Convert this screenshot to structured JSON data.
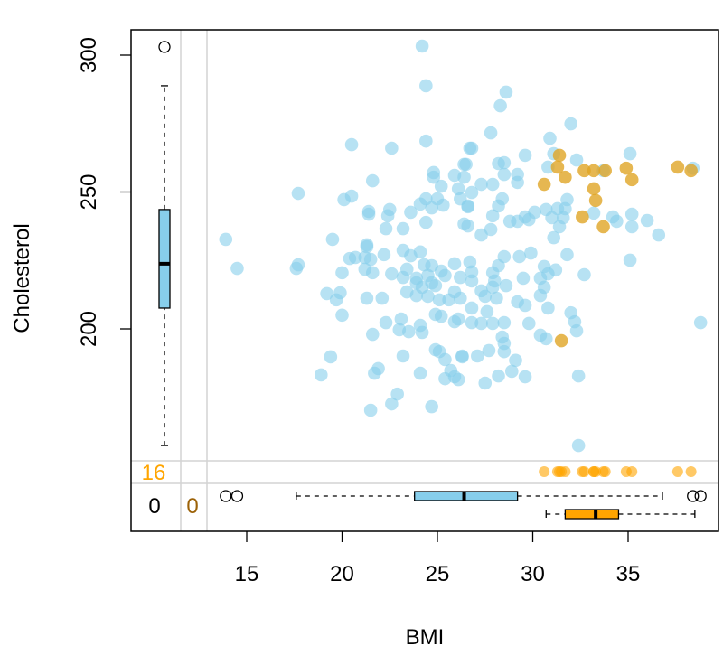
{
  "chart_data": {
    "type": "scatter",
    "title": "",
    "xlabel": "BMI",
    "ylabel": "Cholesterol",
    "xlim": [
      8.9,
      39.7
    ],
    "ylim": [
      126,
      309
    ],
    "x_ticks": [
      15,
      20,
      25,
      30,
      35
    ],
    "y_ticks": [
      200,
      250,
      300
    ],
    "grid": false,
    "colors": {
      "observed": "#87CEEB",
      "imputed": "#E0A526",
      "missing_marks": "#FFA500",
      "missing_count_x": "#9C6208",
      "axis": "#000000"
    },
    "missing_counts": {
      "cholesterol_missing": "16",
      "both_missing": "0",
      "bmi_missing": "0"
    },
    "series": [
      {
        "name": "observed",
        "points": [
          [
            24.2,
            303.3
          ],
          [
            24.4,
            288.8
          ],
          [
            20.5,
            267.3
          ],
          [
            22.6,
            266.0
          ],
          [
            24.4,
            268.6
          ],
          [
            21.6,
            254.1
          ],
          [
            17.7,
            249.5
          ],
          [
            20.1,
            247.2
          ],
          [
            20.5,
            248.5
          ],
          [
            21.4,
            242.9
          ],
          [
            21.4,
            241.9
          ],
          [
            22.5,
            243.6
          ],
          [
            22.4,
            241.3
          ],
          [
            23.6,
            242.6
          ],
          [
            22.3,
            236.6
          ],
          [
            23.2,
            236.6
          ],
          [
            24.4,
            238.9
          ],
          [
            13.9,
            232.7
          ],
          [
            19.5,
            232.7
          ],
          [
            21.3,
            230.7
          ],
          [
            24.8,
            257.1
          ],
          [
            24.8,
            255.4
          ],
          [
            25.2,
            252.1
          ],
          [
            25.9,
            256.1
          ],
          [
            26.4,
            255.4
          ],
          [
            26.4,
            260.1
          ],
          [
            26.7,
            266.0
          ],
          [
            26.1,
            251.2
          ],
          [
            26.2,
            247.5
          ],
          [
            24.4,
            247.5
          ],
          [
            25.0,
            247.5
          ],
          [
            24.1,
            245.6
          ],
          [
            24.7,
            244.2
          ],
          [
            25.3,
            245.2
          ],
          [
            26.6,
            244.6
          ],
          [
            26.4,
            238.3
          ],
          [
            28.6,
            286.5
          ],
          [
            28.3,
            281.5
          ],
          [
            27.8,
            271.6
          ],
          [
            32.0,
            274.9
          ],
          [
            30.9,
            269.6
          ],
          [
            26.8,
            266.0
          ],
          [
            29.6,
            263.4
          ],
          [
            35.1,
            264.0
          ],
          [
            32.3,
            261.7
          ],
          [
            31.1,
            264.0
          ],
          [
            30.8,
            259.1
          ],
          [
            33.7,
            257.8
          ],
          [
            38.4,
            258.7
          ],
          [
            26.5,
            260.1
          ],
          [
            28.2,
            260.4
          ],
          [
            28.5,
            260.7
          ],
          [
            28.5,
            256.4
          ],
          [
            29.2,
            256.4
          ],
          [
            29.2,
            253.5
          ],
          [
            27.9,
            252.8
          ],
          [
            27.3,
            252.8
          ],
          [
            26.8,
            249.8
          ],
          [
            28.4,
            247.5
          ],
          [
            28.2,
            244.9
          ],
          [
            26.6,
            244.9
          ],
          [
            27.9,
            241.3
          ],
          [
            31.8,
            247.2
          ],
          [
            30.7,
            243.6
          ],
          [
            31.3,
            243.9
          ],
          [
            31.7,
            243.9
          ],
          [
            31.0,
            240.6
          ],
          [
            31.6,
            240.6
          ],
          [
            31.4,
            237.3
          ],
          [
            30.1,
            242.6
          ],
          [
            29.6,
            240.9
          ],
          [
            29.8,
            239.9
          ],
          [
            29.2,
            239.3
          ],
          [
            28.8,
            239.3
          ],
          [
            33.2,
            242.3
          ],
          [
            34.2,
            240.9
          ],
          [
            34.4,
            239.3
          ],
          [
            35.2,
            241.9
          ],
          [
            35.2,
            237.3
          ],
          [
            36.0,
            239.6
          ],
          [
            36.6,
            234.3
          ],
          [
            31.1,
            233.3
          ],
          [
            27.8,
            236.3
          ],
          [
            27.3,
            234.3
          ],
          [
            26.6,
            237.6
          ],
          [
            14.5,
            222.1
          ],
          [
            17.6,
            222.1
          ],
          [
            17.7,
            223.4
          ],
          [
            20.0,
            220.5
          ],
          [
            20.4,
            225.7
          ],
          [
            20.7,
            226.1
          ],
          [
            21.3,
            230.0
          ],
          [
            21.2,
            226.1
          ],
          [
            21.5,
            225.4
          ],
          [
            21.2,
            221.8
          ],
          [
            21.6,
            220.5
          ],
          [
            22.2,
            227.1
          ],
          [
            22.6,
            220.1
          ],
          [
            23.2,
            228.7
          ],
          [
            23.6,
            226.7
          ],
          [
            24.1,
            228.1
          ],
          [
            24.3,
            223.4
          ],
          [
            24.7,
            223.1
          ],
          [
            23.4,
            221.8
          ],
          [
            23.2,
            218.8
          ],
          [
            23.9,
            218.5
          ],
          [
            24.5,
            219.5
          ],
          [
            25.2,
            221.1
          ],
          [
            25.4,
            219.5
          ],
          [
            25.9,
            223.8
          ],
          [
            26.2,
            218.8
          ],
          [
            24.9,
            215.8
          ],
          [
            24.7,
            216.8
          ],
          [
            23.9,
            216.8
          ],
          [
            24.2,
            215.2
          ],
          [
            23.4,
            213.5
          ],
          [
            23.9,
            212.2
          ],
          [
            24.5,
            211.9
          ],
          [
            25.1,
            210.6
          ],
          [
            25.6,
            210.6
          ],
          [
            25.9,
            213.5
          ],
          [
            26.2,
            211.2
          ],
          [
            19.2,
            212.9
          ],
          [
            19.9,
            213.2
          ],
          [
            19.7,
            210.6
          ],
          [
            21.3,
            211.2
          ],
          [
            22.1,
            211.2
          ],
          [
            20.0,
            205.0
          ],
          [
            22.3,
            202.3
          ],
          [
            23.1,
            203.6
          ],
          [
            23.0,
            199.7
          ],
          [
            23.5,
            199.0
          ],
          [
            24.1,
            201.3
          ],
          [
            24.2,
            198.7
          ],
          [
            21.6,
            198.0
          ],
          [
            24.9,
            205.3
          ],
          [
            25.2,
            204.6
          ],
          [
            25.9,
            202.6
          ],
          [
            26.1,
            203.6
          ],
          [
            19.4,
            189.8
          ],
          [
            18.9,
            183.2
          ],
          [
            21.9,
            185.5
          ],
          [
            21.7,
            183.8
          ],
          [
            23.2,
            190.1
          ],
          [
            24.1,
            183.8
          ],
          [
            24.9,
            192.4
          ],
          [
            25.1,
            191.7
          ],
          [
            25.4,
            188.8
          ],
          [
            26.3,
            189.8
          ],
          [
            25.7,
            184.8
          ],
          [
            25.4,
            181.8
          ],
          [
            25.9,
            182.5
          ],
          [
            26.1,
            181.5
          ],
          [
            22.9,
            176.2
          ],
          [
            22.6,
            172.6
          ],
          [
            21.5,
            170.3
          ],
          [
            24.7,
            171.6
          ],
          [
            35.1,
            225.1
          ],
          [
            32.7,
            219.8
          ],
          [
            31.8,
            227.1
          ],
          [
            29.9,
            227.7
          ],
          [
            29.3,
            226.4
          ],
          [
            28.5,
            226.4
          ],
          [
            28.2,
            223.1
          ],
          [
            27.9,
            220.5
          ],
          [
            26.8,
            220.8
          ],
          [
            26.7,
            224.4
          ],
          [
            30.6,
            222.8
          ],
          [
            31.2,
            221.5
          ],
          [
            30.8,
            220.1
          ],
          [
            30.4,
            218.5
          ],
          [
            29.5,
            218.5
          ],
          [
            28.6,
            215.8
          ],
          [
            28.0,
            217.5
          ],
          [
            27.9,
            215.2
          ],
          [
            30.6,
            215.2
          ],
          [
            30.4,
            212.2
          ],
          [
            26.8,
            217.5
          ],
          [
            27.3,
            213.9
          ],
          [
            27.5,
            211.9
          ],
          [
            28.1,
            211.2
          ],
          [
            29.2,
            209.9
          ],
          [
            29.6,
            208.6
          ],
          [
            30.8,
            207.6
          ],
          [
            32.0,
            205.9
          ],
          [
            32.2,
            202.6
          ],
          [
            32.3,
            199.3
          ],
          [
            38.8,
            202.3
          ],
          [
            29.8,
            202.0
          ],
          [
            28.5,
            202.3
          ],
          [
            27.9,
            202.0
          ],
          [
            27.3,
            202.0
          ],
          [
            26.8,
            202.3
          ],
          [
            26.8,
            207.6
          ],
          [
            27.6,
            206.3
          ],
          [
            30.4,
            197.7
          ],
          [
            30.7,
            196.4
          ],
          [
            28.4,
            197.0
          ],
          [
            28.5,
            194.7
          ],
          [
            28.5,
            191.7
          ],
          [
            27.7,
            192.1
          ],
          [
            27.1,
            190.1
          ],
          [
            26.3,
            190.1
          ],
          [
            29.1,
            188.5
          ],
          [
            28.9,
            184.5
          ],
          [
            28.2,
            182.8
          ],
          [
            29.6,
            182.5
          ],
          [
            27.5,
            180.2
          ],
          [
            32.4,
            182.8
          ],
          [
            32.4,
            157.4
          ]
        ]
      },
      {
        "name": "imputed",
        "points": [
          [
            31.4,
            263.4
          ],
          [
            31.3,
            259.1
          ],
          [
            31.7,
            255.4
          ],
          [
            30.6,
            252.8
          ],
          [
            32.7,
            257.8
          ],
          [
            33.2,
            257.8
          ],
          [
            33.8,
            257.8
          ],
          [
            34.9,
            258.7
          ],
          [
            35.2,
            254.5
          ],
          [
            33.2,
            251.2
          ],
          [
            33.3,
            246.9
          ],
          [
            32.6,
            240.9
          ],
          [
            33.7,
            237.3
          ],
          [
            37.6,
            259.1
          ],
          [
            38.3,
            257.8
          ],
          [
            31.5,
            195.7
          ]
        ]
      }
    ],
    "boxplots": {
      "cholesterol": {
        "whisker_low": 157.4,
        "q1": 207.6,
        "median": 223.8,
        "q3": 243.6,
        "whisker_high": 288.8,
        "outliers": [
          303.0
        ]
      },
      "bmi_observed": {
        "whisker_low": 17.6,
        "q1": 23.8,
        "median": 26.4,
        "q3": 29.2,
        "whisker_high": 36.8,
        "outliers": [
          13.9,
          14.5,
          38.4,
          38.8
        ]
      },
      "bmi_cholesterol_missing": {
        "whisker_low": 30.7,
        "q1": 31.7,
        "median": 33.3,
        "q3": 34.5,
        "whisker_high": 38.5,
        "outliers": []
      }
    }
  }
}
